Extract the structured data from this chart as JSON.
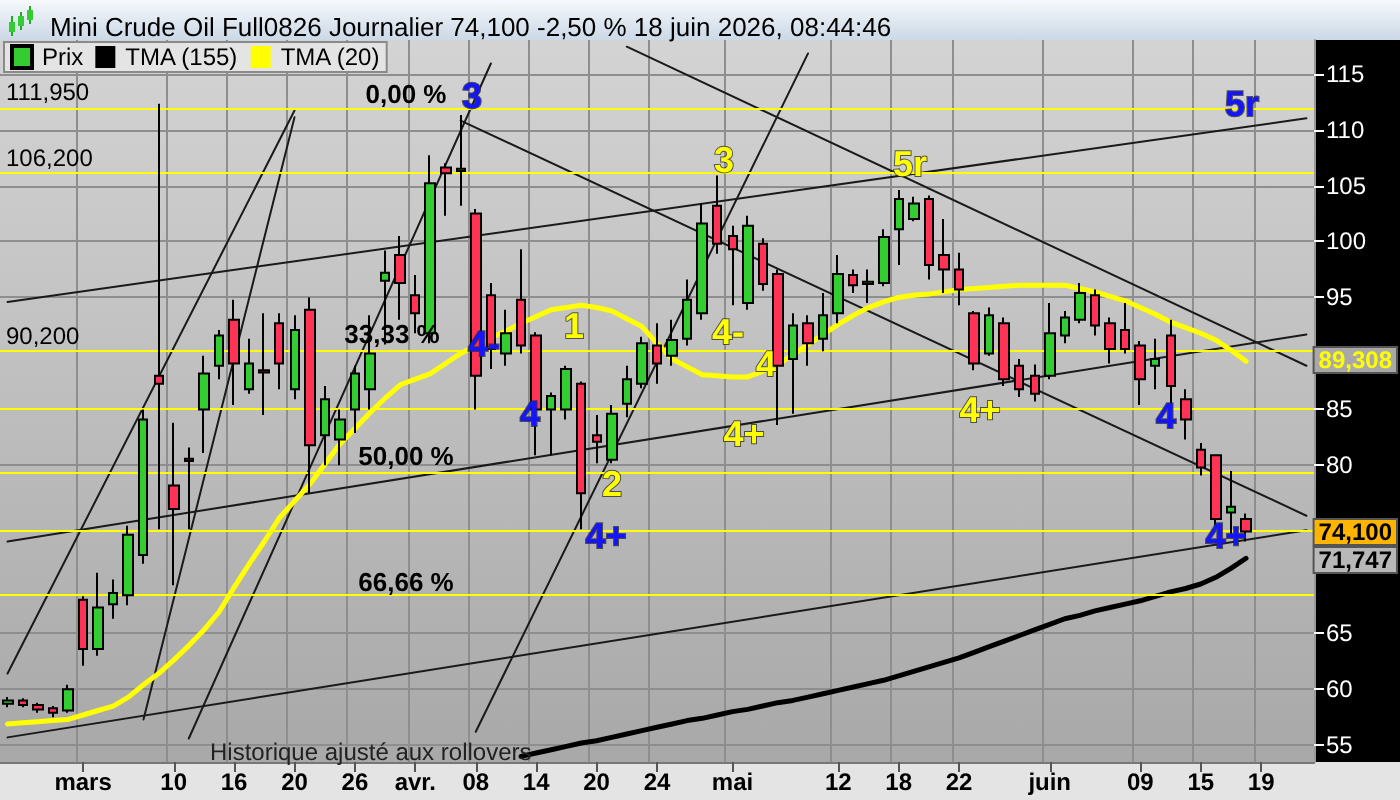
{
  "chart_data": {
    "type": "candlestick",
    "title": "Mini Crude Oil Full0826 Journalier 74,100 -2,50 % 18 juin 2026, 08:44:46",
    "categories": [
      null,
      null,
      null,
      null,
      null,
      "mars",
      null,
      null,
      null,
      null,
      null,
      "10",
      null,
      null,
      null,
      "16",
      null,
      null,
      null,
      "20",
      null,
      null,
      null,
      "26",
      null,
      null,
      null,
      "avr.",
      null,
      null,
      null,
      "08",
      null,
      null,
      null,
      "14",
      null,
      null,
      null,
      "20",
      null,
      null,
      null,
      "24",
      null,
      null,
      null,
      null,
      "mai",
      null,
      null,
      null,
      null,
      null,
      null,
      "12",
      null,
      null,
      null,
      "18",
      null,
      null,
      null,
      "22",
      null,
      null,
      null,
      null,
      null,
      "juin",
      null,
      null,
      null,
      null,
      null,
      "09",
      null,
      null,
      null,
      "15",
      null,
      null,
      null,
      "19",
      null,
      null,
      null
    ],
    "ylim": [
      53.5,
      118
    ],
    "yticks": [
      55,
      60,
      65,
      80,
      85,
      95,
      100,
      105,
      110,
      115
    ],
    "grid": true,
    "legend": "top left",
    "marker": "none",
    "line_style": "solid",
    "series": [
      {
        "name": "Prix",
        "ohlc": [
          [
            58.7,
            59.3,
            58.4,
            59.0
          ],
          [
            59.0,
            59.2,
            58.4,
            58.6
          ],
          [
            58.6,
            58.8,
            57.9,
            58.2
          ],
          [
            58.3,
            58.5,
            57.5,
            57.9
          ],
          [
            58.1,
            60.4,
            57.9,
            60.0
          ],
          [
            68.0,
            68.3,
            62.1,
            63.6
          ],
          [
            63.6,
            70.4,
            63.0,
            67.3
          ],
          [
            67.6,
            69.8,
            66.3,
            68.6
          ],
          [
            68.4,
            74.6,
            67.5,
            73.8
          ],
          [
            72.0,
            85.0,
            71.2,
            84.1
          ],
          [
            88.0,
            112.3,
            74.3,
            87.3
          ],
          [
            78.2,
            83.8,
            69.3,
            76.1
          ],
          [
            80.6,
            81.6,
            74.3,
            80.4
          ],
          [
            85.0,
            89.8,
            81.1,
            88.2
          ],
          [
            88.9,
            92.1,
            87.7,
            91.6
          ],
          [
            93.0,
            94.8,
            85.4,
            89.1
          ],
          [
            86.8,
            91.3,
            86.4,
            89.1
          ],
          [
            88.5,
            93.6,
            84.5,
            88.3
          ],
          [
            92.7,
            93.6,
            86.8,
            89.1
          ],
          [
            86.8,
            93.4,
            85.9,
            92.1
          ],
          [
            93.9,
            95.0,
            77.5,
            81.8
          ],
          [
            82.7,
            87.1,
            80.0,
            85.9
          ],
          [
            82.3,
            85.0,
            80.0,
            84.1
          ],
          [
            85.0,
            88.9,
            82.9,
            88.2
          ],
          [
            86.8,
            93.4,
            85.0,
            90.0
          ],
          [
            96.5,
            99.2,
            90.8,
            97.2
          ],
          [
            98.8,
            100.5,
            93.0,
            96.3
          ],
          [
            95.2,
            97.0,
            91.8,
            93.6
          ],
          [
            91.8,
            107.7,
            90.9,
            105.2
          ],
          [
            106.6,
            107.0,
            102.3,
            106.1
          ],
          [
            106.3,
            111.3,
            103.2,
            106.5
          ],
          [
            102.5,
            102.9,
            85.0,
            88.0
          ],
          [
            95.2,
            96.3,
            88.6,
            90.4
          ],
          [
            90.0,
            93.9,
            88.9,
            91.8
          ],
          [
            94.8,
            99.3,
            90.0,
            90.7
          ],
          [
            91.6,
            91.9,
            80.9,
            85.0
          ],
          [
            85.0,
            86.5,
            80.9,
            86.2
          ],
          [
            85.0,
            88.9,
            84.1,
            88.6
          ],
          [
            87.3,
            87.5,
            74.3,
            77.5
          ],
          [
            82.7,
            84.5,
            80.2,
            82.1
          ],
          [
            80.5,
            85.4,
            80.2,
            84.6
          ],
          [
            85.5,
            88.9,
            84.3,
            87.7
          ],
          [
            87.3,
            91.5,
            86.9,
            90.9
          ],
          [
            90.7,
            92.7,
            87.3,
            89.1
          ],
          [
            89.8,
            93.0,
            88.9,
            91.2
          ],
          [
            91.3,
            96.6,
            90.7,
            94.8
          ],
          [
            93.6,
            103.4,
            93.0,
            101.6
          ],
          [
            103.2,
            105.9,
            98.9,
            99.8
          ],
          [
            100.5,
            101.4,
            94.3,
            99.3
          ],
          [
            94.5,
            102.3,
            93.9,
            101.4
          ],
          [
            99.8,
            100.3,
            95.6,
            96.2
          ],
          [
            97.1,
            97.5,
            83.6,
            88.9
          ],
          [
            89.5,
            93.6,
            84.6,
            92.5
          ],
          [
            92.7,
            93.4,
            88.9,
            90.9
          ],
          [
            91.3,
            95.4,
            90.2,
            93.4
          ],
          [
            93.6,
            98.8,
            92.7,
            97.1
          ],
          [
            97.0,
            97.5,
            95.4,
            96.1
          ],
          [
            96.2,
            97.5,
            94.5,
            96.4
          ],
          [
            96.3,
            101.1,
            96.0,
            100.4
          ],
          [
            101.1,
            104.6,
            97.9,
            103.8
          ],
          [
            102.0,
            104.0,
            101.8,
            103.4
          ],
          [
            103.8,
            104.1,
            96.6,
            97.9
          ],
          [
            98.8,
            102.0,
            95.4,
            97.5
          ],
          [
            97.5,
            99.0,
            94.3,
            95.7
          ],
          [
            93.6,
            93.8,
            88.5,
            89.1
          ],
          [
            90.0,
            94.1,
            89.8,
            93.4
          ],
          [
            92.7,
            93.2,
            87.1,
            87.7
          ],
          [
            88.9,
            89.5,
            86.1,
            86.8
          ],
          [
            88.0,
            89.0,
            85.7,
            86.4
          ],
          [
            88.0,
            94.5,
            87.7,
            91.8
          ],
          [
            91.6,
            93.8,
            90.9,
            93.2
          ],
          [
            93.0,
            96.3,
            92.7,
            95.4
          ],
          [
            95.2,
            95.7,
            91.6,
            92.5
          ],
          [
            92.7,
            93.2,
            89.1,
            90.4
          ],
          [
            92.1,
            94.5,
            90.0,
            90.4
          ],
          [
            90.7,
            91.1,
            85.4,
            87.7
          ],
          [
            88.9,
            91.3,
            86.8,
            89.5
          ],
          [
            91.6,
            93.0,
            85.0,
            87.1
          ],
          [
            85.9,
            86.8,
            82.3,
            84.1
          ],
          [
            81.4,
            82.0,
            79.1,
            79.8
          ],
          [
            80.9,
            81.0,
            74.6,
            75.2
          ],
          [
            75.8,
            79.5,
            73.9,
            76.3
          ],
          [
            75.2,
            75.7,
            73.2,
            74.1
          ],
          null,
          null,
          null,
          null
        ],
        "colors": [
          "#33cc33",
          "#ff3355",
          "#ff3355",
          "#ff3355",
          "#33cc33",
          "#ff3355",
          "#33cc33",
          "#33cc33",
          "#33cc33",
          "#33cc33",
          "#ff3355",
          "#ff3355",
          "#ff3355",
          "#33cc33",
          "#33cc33",
          "#ff3355",
          "#33cc33",
          "#ff3355",
          "#ff3355",
          "#33cc33",
          "#ff3355",
          "#33cc33",
          "#33cc33",
          "#33cc33",
          "#33cc33",
          "#33cc33",
          "#ff3355",
          "#ff3355",
          "#33cc33",
          "#ff3355",
          "#33cc33",
          "#ff3355",
          "#ff3355",
          "#33cc33",
          "#ff3355",
          "#ff3355",
          "#33cc33",
          "#33cc33",
          "#ff3355",
          "#ff3355",
          "#33cc33",
          "#33cc33",
          "#33cc33",
          "#ff3355",
          "#33cc33",
          "#33cc33",
          "#33cc33",
          "#ff3355",
          "#ff3355",
          "#33cc33",
          "#ff3355",
          "#ff3355",
          "#33cc33",
          "#ff3355",
          "#33cc33",
          "#33cc33",
          "#ff3355",
          "#33cc33",
          "#33cc33",
          "#33cc33",
          "#33cc33",
          "#ff3355",
          "#ff3355",
          "#ff3355",
          "#ff3355",
          "#33cc33",
          "#ff3355",
          "#ff3355",
          "#ff3355",
          "#33cc33",
          "#33cc33",
          "#33cc33",
          "#ff3355",
          "#ff3355",
          "#ff3355",
          "#ff3355",
          "#33cc33",
          "#ff3355",
          "#ff3355",
          "#ff3355",
          "#ff3355",
          "#33cc33",
          "#ff3355",
          null,
          null,
          null,
          null
        ]
      },
      {
        "name": "TMA (155)",
        "type": "line",
        "color": "#000000",
        "values": [
          null,
          null,
          null,
          null,
          null,
          null,
          null,
          null,
          null,
          null,
          null,
          null,
          null,
          null,
          null,
          null,
          null,
          null,
          null,
          null,
          null,
          null,
          null,
          null,
          null,
          null,
          null,
          null,
          null,
          null,
          null,
          null,
          null,
          null,
          54.0,
          54.3,
          54.6,
          54.9,
          55.2,
          55.4,
          55.7,
          56.0,
          56.3,
          56.6,
          56.9,
          57.2,
          57.4,
          57.7,
          58.0,
          58.2,
          58.5,
          58.8,
          59.0,
          59.3,
          59.6,
          59.9,
          60.2,
          60.5,
          60.8,
          61.2,
          61.6,
          62.0,
          62.4,
          62.8,
          63.3,
          63.8,
          64.3,
          64.8,
          65.3,
          65.8,
          66.3,
          66.6,
          67.0,
          67.3,
          67.6,
          67.9,
          68.3,
          68.7,
          69.0,
          69.4,
          70.0,
          70.8,
          71.7,
          null,
          null,
          null,
          null
        ]
      },
      {
        "name": "TMA (20)",
        "type": "line",
        "color": "#ffff00",
        "values": [
          56.9,
          57.0,
          57.1,
          57.2,
          57.3,
          57.7,
          58.1,
          58.5,
          59.3,
          60.4,
          61.4,
          62.6,
          63.9,
          65.3,
          66.9,
          69.1,
          71.2,
          73.2,
          75.3,
          76.8,
          78.3,
          80.1,
          81.9,
          83.3,
          84.7,
          86.0,
          87.2,
          87.7,
          88.2,
          89.1,
          90.0,
          90.7,
          91.4,
          92.0,
          92.7,
          93.3,
          93.9,
          94.1,
          94.3,
          94.1,
          93.8,
          93.1,
          92.4,
          90.9,
          89.5,
          88.8,
          88.1,
          88.0,
          87.9,
          87.9,
          88.4,
          89.0,
          89.9,
          90.8,
          91.7,
          92.6,
          93.4,
          94.1,
          94.6,
          95.0,
          95.2,
          95.3,
          95.5,
          95.7,
          95.8,
          95.9,
          96.0,
          96.1,
          96.1,
          96.1,
          96.1,
          95.8,
          95.5,
          95.1,
          94.7,
          94.1,
          93.5,
          92.8,
          92.3,
          91.8,
          91.2,
          90.3,
          89.3,
          null,
          null,
          null,
          null
        ]
      },
      {
        "type": "line",
        "color": "#1a1a1a",
        "values": [
          null,
          null,
          null,
          null,
          null,
          null,
          null,
          null,
          null,
          null,
          null,
          null,
          null,
          null,
          null,
          null,
          null,
          null,
          null,
          null,
          null,
          null,
          null,
          null,
          null,
          null,
          null,
          null,
          null,
          null,
          null,
          null,
          null,
          null,
          null,
          null,
          null,
          null,
          null,
          null,
          null,
          117.4,
          null,
          null,
          null,
          null,
          null,
          null,
          null,
          null,
          null,
          null,
          null,
          null,
          null,
          null,
          null,
          null,
          null,
          null,
          null,
          null,
          null,
          null,
          null,
          null,
          null,
          null,
          null,
          null,
          null,
          null,
          null,
          null,
          null,
          null,
          null,
          null,
          null,
          null,
          null,
          null,
          null,
          null,
          null,
          null,
          88.9
        ]
      },
      {
        "type": "line",
        "color": "#1a1a1a",
        "values": [
          null,
          null,
          null,
          null,
          null,
          null,
          null,
          null,
          null,
          null,
          null,
          null,
          null,
          null,
          null,
          null,
          null,
          null,
          null,
          null,
          null,
          null,
          null,
          null,
          null,
          null,
          null,
          null,
          null,
          null,
          110.8,
          null,
          null,
          null,
          null,
          null,
          null,
          null,
          null,
          null,
          null,
          null,
          null,
          null,
          null,
          null,
          null,
          null,
          null,
          null,
          null,
          null,
          null,
          null,
          null,
          null,
          null,
          null,
          null,
          null,
          null,
          null,
          null,
          null,
          null,
          null,
          null,
          null,
          null,
          null,
          null,
          null,
          null,
          null,
          null,
          null,
          null,
          null,
          null,
          null,
          null,
          null,
          null,
          null,
          null,
          null,
          75.5
        ]
      },
      {
        "type": "line",
        "color": "#1a1a1a",
        "values": [
          94.6,
          null,
          null,
          null,
          null,
          null,
          null,
          null,
          null,
          null,
          null,
          null,
          null,
          null,
          null,
          null,
          null,
          null,
          null,
          null,
          null,
          null,
          null,
          null,
          null,
          null,
          null,
          null,
          null,
          null,
          null,
          null,
          null,
          null,
          null,
          null,
          null,
          null,
          null,
          null,
          null,
          null,
          null,
          null,
          null,
          null,
          null,
          null,
          null,
          null,
          null,
          null,
          null,
          null,
          null,
          null,
          null,
          null,
          null,
          null,
          null,
          null,
          null,
          null,
          null,
          null,
          null,
          null,
          null,
          null,
          null,
          null,
          null,
          null,
          null,
          null,
          null,
          null,
          null,
          null,
          null,
          null,
          null,
          null,
          null,
          null,
          111.0
        ]
      },
      {
        "type": "line",
        "color": "#1a1a1a",
        "values": [
          73.2,
          null,
          null,
          null,
          null,
          null,
          null,
          null,
          null,
          null,
          null,
          null,
          null,
          null,
          null,
          null,
          null,
          null,
          null,
          null,
          null,
          null,
          null,
          null,
          null,
          null,
          null,
          null,
          null,
          null,
          null,
          null,
          null,
          null,
          null,
          null,
          null,
          null,
          null,
          null,
          null,
          null,
          null,
          null,
          null,
          null,
          null,
          null,
          null,
          null,
          null,
          null,
          null,
          null,
          null,
          null,
          null,
          null,
          null,
          null,
          null,
          null,
          null,
          null,
          null,
          null,
          null,
          null,
          null,
          null,
          null,
          null,
          null,
          null,
          null,
          null,
          null,
          null,
          null,
          null,
          null,
          null,
          null,
          null,
          null,
          null,
          91.7
        ]
      },
      {
        "type": "line",
        "color": "#1a1a1a",
        "values": [
          55.7,
          null,
          null,
          null,
          null,
          null,
          null,
          null,
          null,
          null,
          null,
          null,
          null,
          null,
          null,
          null,
          null,
          null,
          null,
          null,
          null,
          null,
          null,
          null,
          null,
          null,
          null,
          null,
          null,
          null,
          null,
          null,
          null,
          null,
          null,
          null,
          null,
          null,
          null,
          null,
          null,
          null,
          null,
          null,
          null,
          null,
          null,
          null,
          null,
          null,
          null,
          null,
          null,
          null,
          null,
          null,
          null,
          null,
          null,
          null,
          null,
          null,
          null,
          null,
          null,
          null,
          null,
          null,
          null,
          null,
          null,
          null,
          null,
          null,
          null,
          null,
          null,
          null,
          null,
          null,
          null,
          null,
          null,
          null,
          null,
          null,
          74.2
        ]
      },
      {
        "type": "line",
        "color": "#1a1a1a",
        "values": [
          61.4,
          null,
          null,
          null,
          null,
          null,
          null,
          null,
          null,
          null,
          null,
          null,
          null,
          null,
          null,
          null,
          null,
          null,
          null,
          111.7,
          null,
          null,
          null,
          null,
          null,
          null,
          null,
          null,
          null,
          null,
          null,
          null,
          null,
          null,
          null,
          null,
          null,
          null,
          null,
          null,
          null,
          null,
          null,
          null,
          null,
          null,
          null,
          null,
          null,
          null,
          null,
          null,
          null,
          null,
          null,
          null,
          null,
          null,
          null,
          null,
          null,
          null,
          null,
          null,
          null,
          null,
          null,
          null,
          null,
          null,
          null,
          null,
          null,
          null,
          null,
          null,
          null,
          null,
          null,
          null,
          null,
          null,
          null,
          null,
          null,
          null,
          null
        ]
      },
      {
        "type": "line",
        "color": "#1a1a1a",
        "values": [
          null,
          null,
          null,
          null,
          null,
          null,
          null,
          null,
          null,
          null,
          null,
          null,
          55.6,
          null,
          null,
          null,
          null,
          null,
          null,
          null,
          null,
          null,
          null,
          null,
          null,
          null,
          null,
          null,
          null,
          null,
          null,
          null,
          115.9,
          null,
          null,
          null,
          null,
          null,
          null,
          null,
          null,
          null,
          null,
          null,
          null,
          null,
          null,
          null,
          null,
          null,
          null,
          null,
          null,
          null,
          null,
          null,
          null,
          null,
          null,
          null,
          null,
          null,
          null,
          null,
          null,
          null,
          null,
          null,
          null,
          null,
          null,
          null,
          null,
          null,
          null,
          null,
          null,
          null,
          null,
          null,
          null,
          null,
          null,
          null,
          null,
          null,
          null
        ]
      },
      {
        "type": "line",
        "color": "#1a1a1a",
        "values": [
          null,
          null,
          null,
          null,
          null,
          null,
          null,
          null,
          null,
          null,
          null,
          null,
          null,
          null,
          null,
          null,
          null,
          null,
          null,
          null,
          null,
          null,
          null,
          null,
          null,
          null,
          null,
          null,
          null,
          null,
          null,
          56.2,
          null,
          null,
          null,
          null,
          null,
          null,
          null,
          null,
          null,
          null,
          null,
          null,
          null,
          null,
          null,
          null,
          null,
          null,
          null,
          null,
          null,
          116.8,
          null,
          null,
          null,
          null,
          null,
          null,
          null,
          null,
          null,
          null,
          null,
          null,
          null,
          null,
          null,
          null,
          null,
          null,
          null,
          null,
          null,
          null,
          null,
          null,
          null,
          null,
          null,
          null,
          null,
          null,
          null,
          null,
          null
        ]
      },
      {
        "type": "line",
        "color": "#1a1a1a",
        "values": [
          null,
          null,
          null,
          null,
          null,
          null,
          null,
          null,
          null,
          57.3,
          null,
          null,
          null,
          null,
          null,
          null,
          null,
          null,
          null,
          111.1,
          null,
          null,
          null,
          null,
          null,
          null,
          null,
          null,
          null,
          null,
          null,
          null,
          null,
          null,
          null,
          null,
          null,
          null,
          null,
          null,
          null,
          null,
          null,
          null,
          null,
          null,
          null,
          null,
          null,
          null,
          null,
          null,
          null,
          null,
          null,
          null,
          null,
          null,
          null,
          null,
          null,
          null,
          null,
          null,
          null,
          null,
          null,
          null,
          null,
          null,
          null,
          null,
          null,
          null,
          null,
          null,
          null,
          null,
          null,
          null,
          null,
          null,
          null,
          null,
          null,
          null,
          null
        ]
      }
    ],
    "ref_lines": [
      {
        "axis": "y",
        "value": 111.95,
        "color": "#ffff00"
      },
      {
        "axis": "y",
        "value": 106.2,
        "color": "#ffff00"
      },
      {
        "axis": "y",
        "value": 90.2,
        "color": "#ffff00"
      },
      {
        "axis": "y",
        "value": 85.0,
        "color": "#ffff00"
      },
      {
        "axis": "y",
        "value": 79.3,
        "color": "#ffff00"
      },
      {
        "axis": "y",
        "value": 74.1,
        "color": "#ffff00"
      },
      {
        "axis": "y",
        "value": 68.5,
        "color": "#ffff00"
      }
    ],
    "annotations": [
      "111,950",
      "106,200",
      "90,200",
      "0,00 %",
      "33,33 %",
      "50,00 %",
      "66,66 %",
      "3",
      "4-",
      "4",
      "4+",
      "4",
      "4+",
      "5r",
      "1",
      "2",
      "3",
      "4-",
      "4",
      "4+",
      "5r",
      "4+",
      "Historique ajusté aux rollovers",
      "89,308",
      "74,100",
      "71,747"
    ]
  }
}
